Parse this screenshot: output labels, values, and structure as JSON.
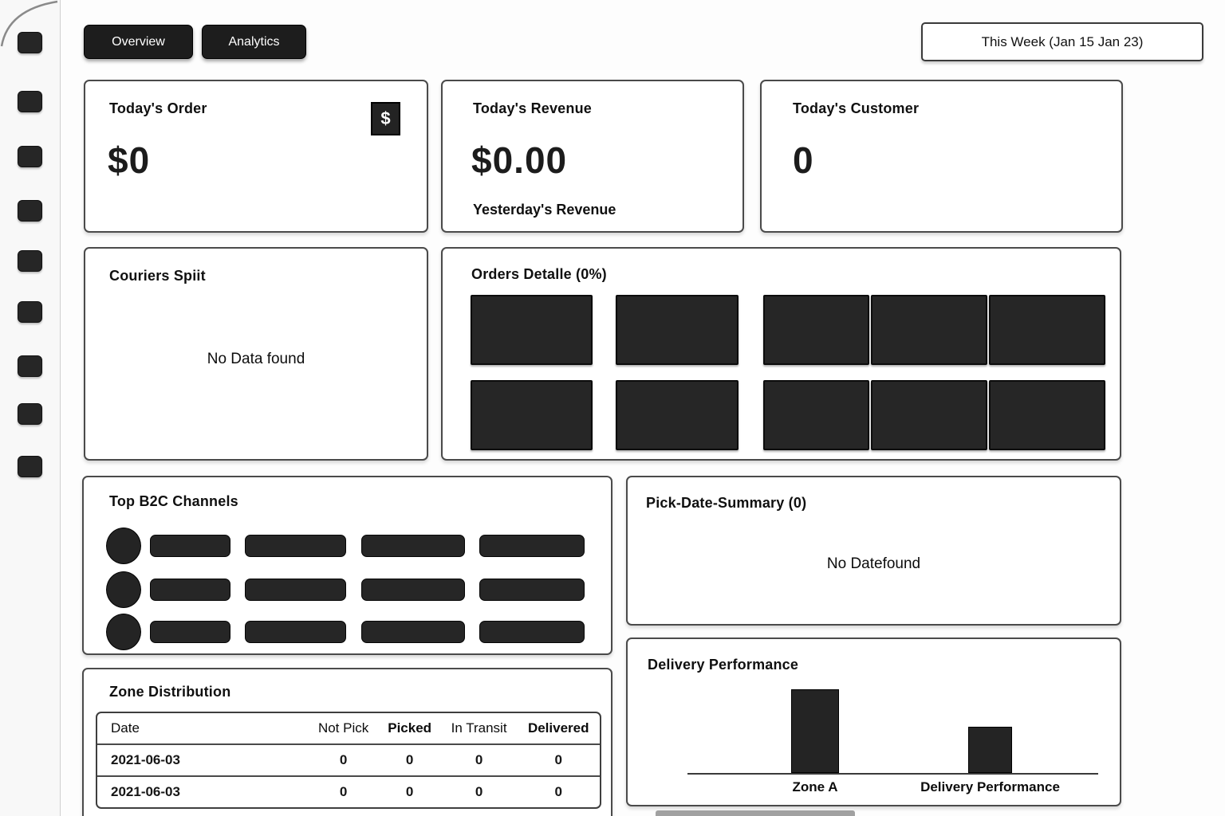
{
  "colors": {
    "dark": "#242424",
    "card_border": "#4a4a4a",
    "background": "#fdfdfd",
    "text": "#161616"
  },
  "tabs": [
    {
      "label": "Overview"
    },
    {
      "label": "Analytics"
    }
  ],
  "date_filter": {
    "label": "This Week (Jan 15 Jan 23)"
  },
  "sidebar": {
    "icons": [
      {
        "name": "sidebar-icon-1"
      },
      {
        "name": "sidebar-icon-2"
      },
      {
        "name": "sidebar-icon-3"
      },
      {
        "name": "sidebar-icon-4"
      },
      {
        "name": "sidebar-icon-5"
      },
      {
        "name": "sidebar-icon-6"
      },
      {
        "name": "sidebar-icon-7"
      },
      {
        "name": "sidebar-icon-8"
      },
      {
        "name": "sidebar-icon-9"
      }
    ]
  },
  "stats": [
    {
      "title": "Today's Order",
      "value": "$0",
      "icon": "$"
    },
    {
      "title": "Today's Revenue",
      "value": "$0.00",
      "subtitle": "Yesterday's Revenue"
    },
    {
      "title": "Today's Customer",
      "value": "0"
    }
  ],
  "couriers_split": {
    "title": "Couriers Spiit",
    "empty_text": "No Data found"
  },
  "orders_detail": {
    "title": "Orders Detalle (0%)",
    "rows": 2,
    "blocks_per_row": 5
  },
  "top_b2c": {
    "title": "Top B2C Channels",
    "rows": 3,
    "bars_per_row": 4
  },
  "pick_date_summary": {
    "title": "Pick-Date-Summary (0)",
    "empty_text": "No Datefound"
  },
  "zone_distribution": {
    "title": "Zone Distribution",
    "columns": [
      {
        "label": "Date",
        "bold": false
      },
      {
        "label": "Not Pick",
        "bold": false
      },
      {
        "label": "Picked",
        "bold": true
      },
      {
        "label": "In Transit",
        "bold": false
      },
      {
        "label": "Delivered",
        "bold": true
      }
    ],
    "rows": [
      [
        "2021-06-03",
        "0",
        "0",
        "0",
        "0"
      ],
      [
        "2021-06-03",
        "0",
        "0",
        "0",
        "0"
      ]
    ]
  },
  "chart_data": {
    "type": "bar",
    "title": "Delivery Performance",
    "categories": [
      "Zone A",
      "Delivery Performance"
    ],
    "values": [
      100,
      55
    ],
    "xlabel": "",
    "ylabel": "",
    "ylim": [
      0,
      100
    ],
    "grid": false,
    "legend": false
  }
}
